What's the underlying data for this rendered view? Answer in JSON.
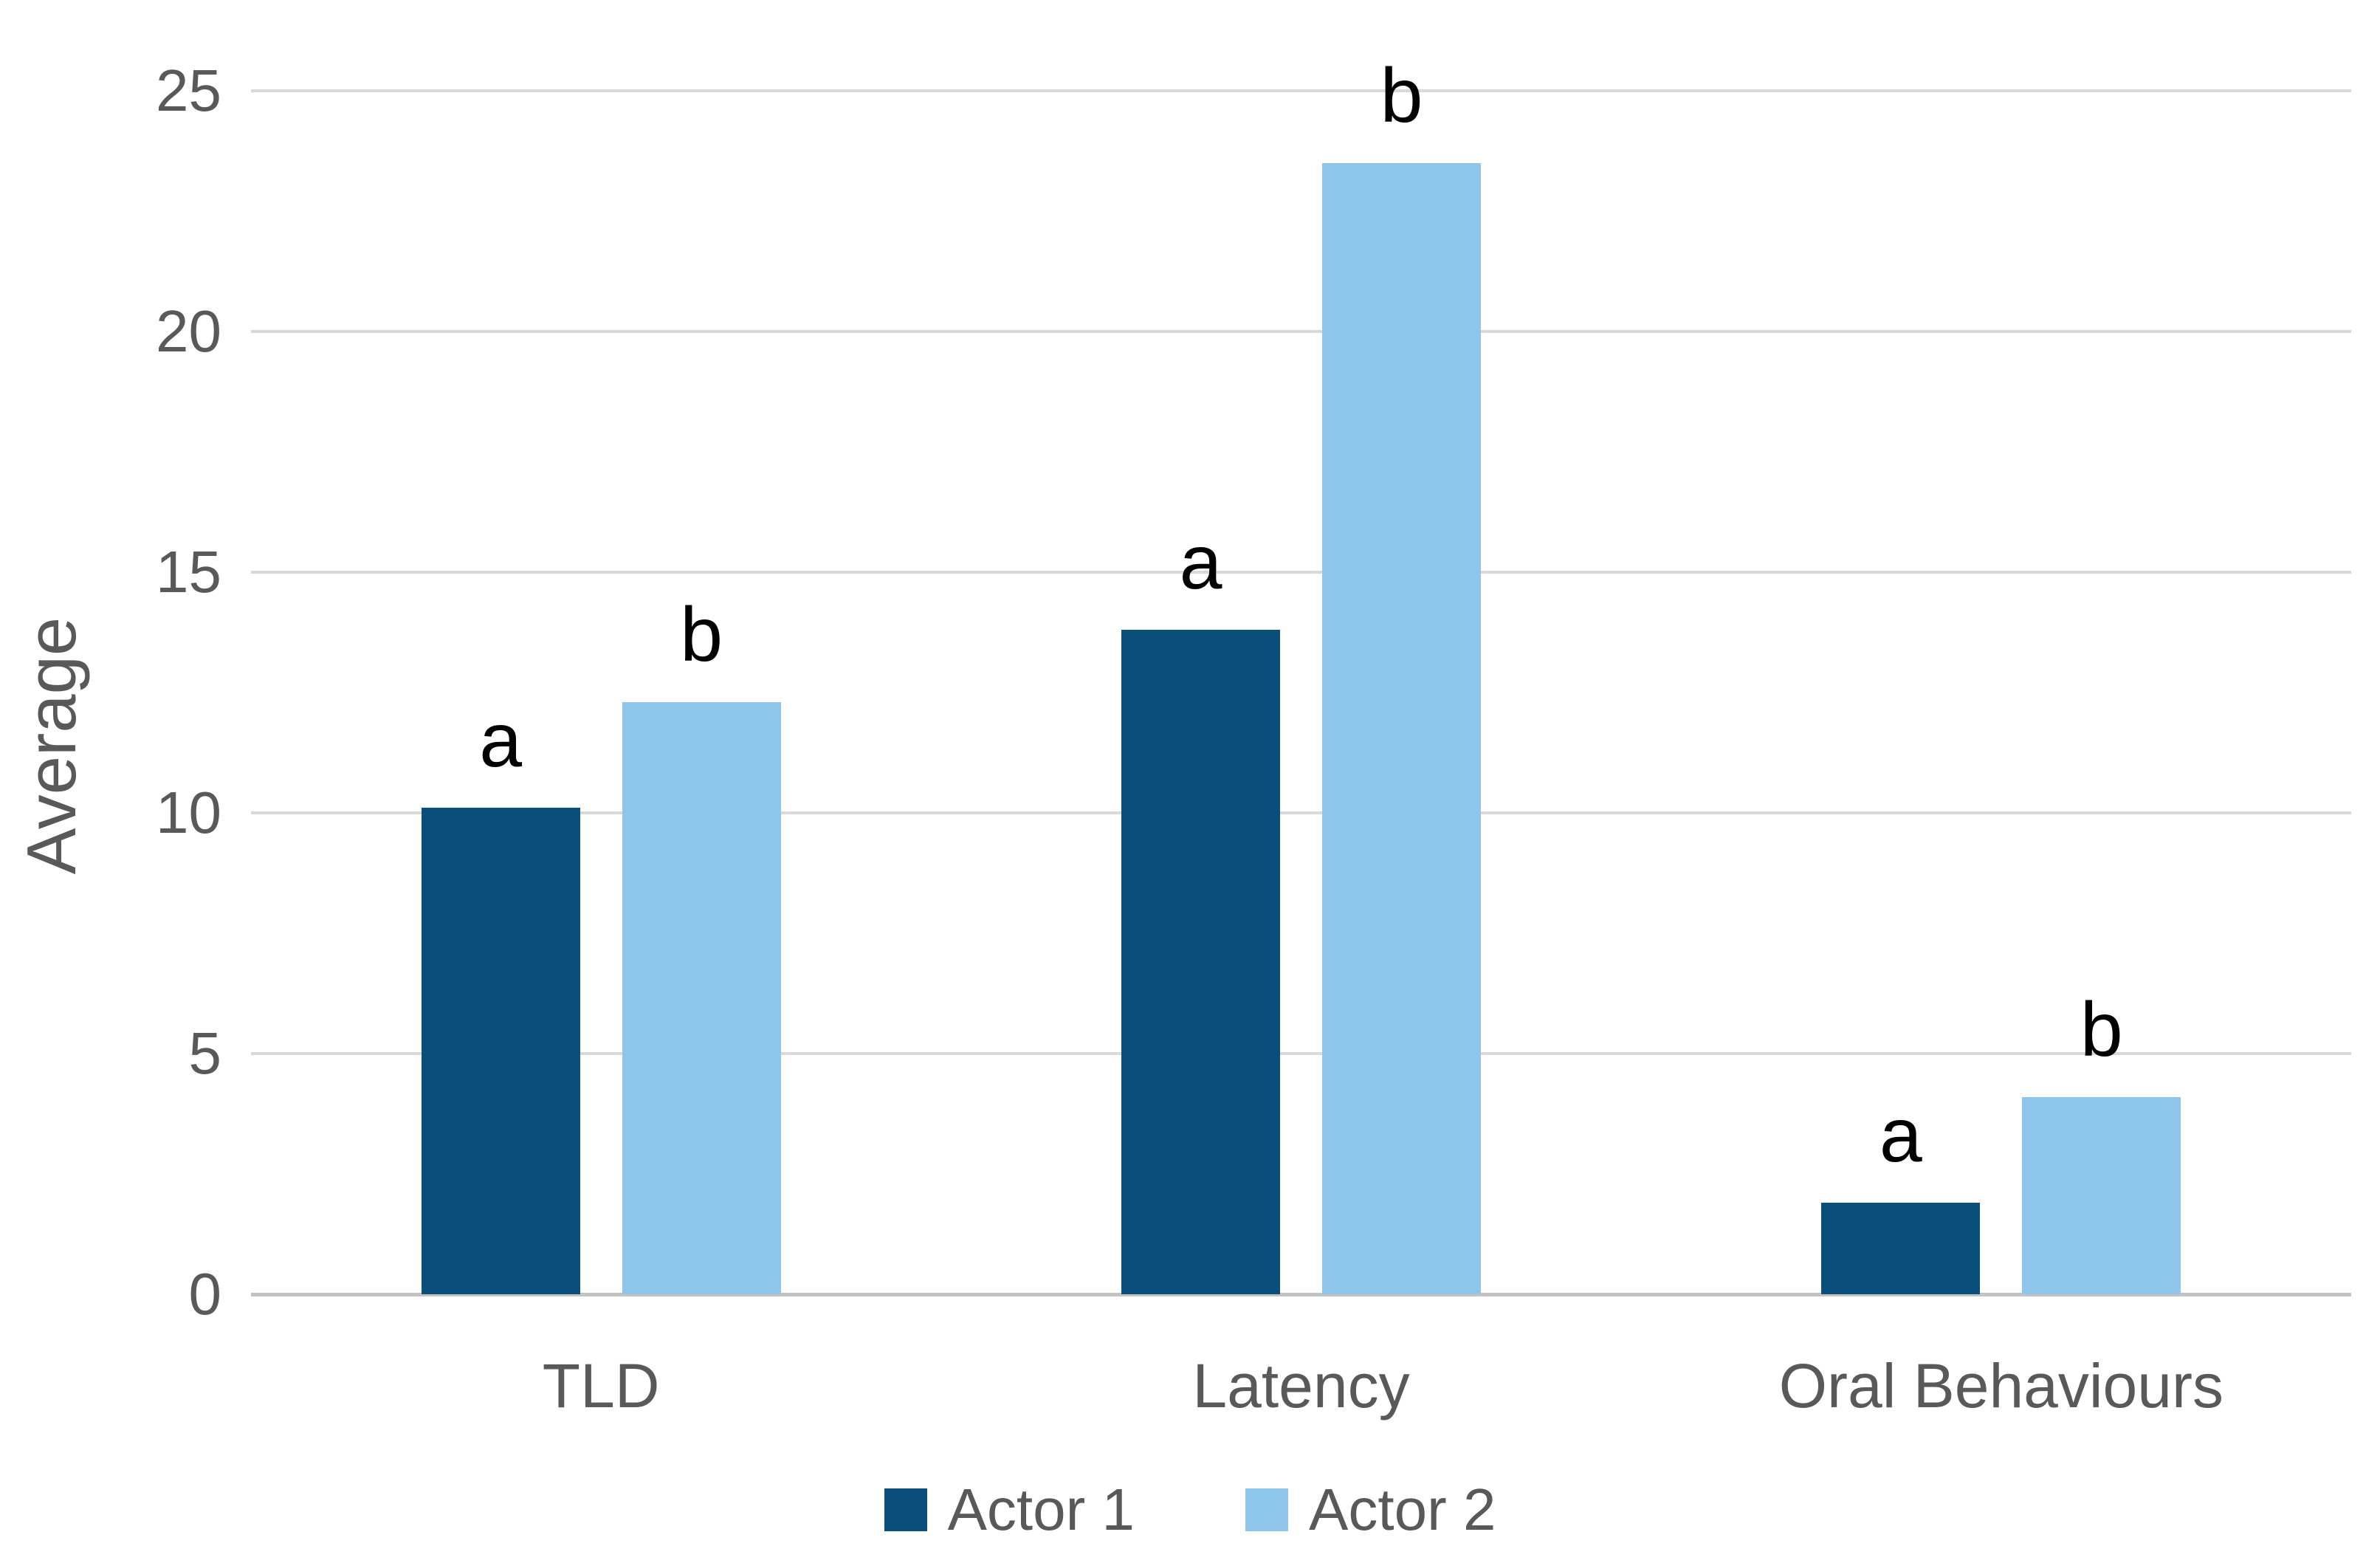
{
  "chart_data": {
    "type": "bar",
    "title": "",
    "xlabel": "",
    "ylabel": "Average",
    "categories": [
      "TLD",
      "Latency",
      "Oral Behaviours"
    ],
    "series": [
      {
        "name": "Actor 1",
        "color": "#0a4f7c",
        "values": [
          10.1,
          13.8,
          1.9
        ],
        "annotations": [
          "a",
          "a",
          "a"
        ]
      },
      {
        "name": "Actor 2",
        "color": "#8dc6ea",
        "values": [
          12.3,
          23.5,
          4.1
        ],
        "annotations": [
          "b",
          "b",
          "b"
        ]
      }
    ],
    "ylim": [
      0,
      25
    ],
    "yticks": [
      0,
      5,
      10,
      15,
      20,
      25
    ],
    "grid": true,
    "gridline_color": "#d9d9d9",
    "baseline_color": "#c3c3c3",
    "text_color": "#595959",
    "annotation_color": "#000000",
    "legend_position": "bottom"
  }
}
